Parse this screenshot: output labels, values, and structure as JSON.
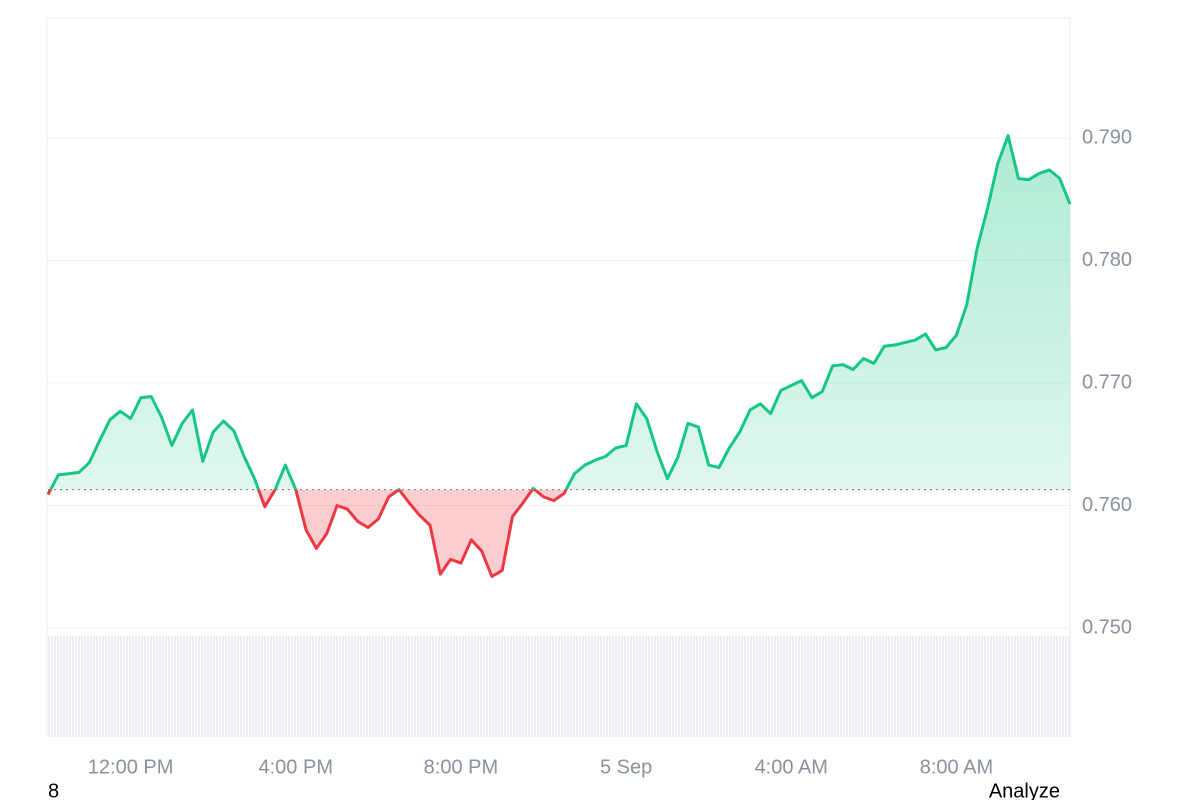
{
  "chart_data": {
    "type": "line",
    "categories": [
      null,
      null,
      null,
      null,
      null,
      null,
      null,
      null,
      "12:00 PM",
      null,
      null,
      null,
      null,
      null,
      null,
      null,
      null,
      null,
      null,
      null,
      null,
      null,
      null,
      null,
      "4:00 PM",
      null,
      null,
      null,
      null,
      null,
      null,
      null,
      null,
      null,
      null,
      null,
      null,
      null,
      null,
      null,
      "8:00 PM",
      null,
      null,
      null,
      null,
      null,
      null,
      null,
      null,
      null,
      null,
      null,
      null,
      null,
      null,
      null,
      "5 Sep",
      null,
      null,
      null,
      null,
      null,
      null,
      null,
      null,
      null,
      null,
      null,
      null,
      null,
      null,
      null,
      "4:00 AM",
      null,
      null,
      null,
      null,
      null,
      null,
      null,
      null,
      null,
      null,
      null,
      null,
      null,
      null,
      null,
      "8:00 AM",
      null,
      null,
      null,
      null,
      null,
      null,
      null,
      null,
      null,
      null,
      null
    ],
    "series": [
      {
        "color": "#16c784",
        "values": [
          0.7609,
          0.7625,
          0.7626,
          0.7627,
          0.7635,
          0.7653,
          0.767,
          0.7677,
          0.7671,
          0.7688,
          0.7689,
          0.7672,
          0.7649,
          0.7667,
          0.7678,
          0.7636,
          0.766,
          0.7669,
          0.7661,
          0.764,
          0.7622,
          0.7599,
          0.7613,
          0.7633,
          0.7613,
          0.758,
          0.7565,
          0.7577,
          0.76,
          0.7597,
          0.7587,
          0.7582,
          0.7589,
          0.7607,
          0.7613,
          0.7602,
          0.7592,
          0.7584,
          0.7544,
          0.7556,
          0.7553,
          0.7572,
          0.7563,
          0.7542,
          0.7547,
          0.7591,
          0.7602,
          0.7614,
          0.7607,
          0.7604,
          0.761,
          0.7626,
          0.7633,
          0.7637,
          0.764,
          0.7647,
          0.7649,
          0.7683,
          0.7671,
          0.7644,
          0.7622,
          0.7639,
          0.7667,
          0.7664,
          0.7633,
          0.7631,
          0.7647,
          0.766,
          0.7678,
          0.7683,
          0.7675,
          0.7694,
          0.7698,
          0.7702,
          0.7688,
          0.7693,
          0.7714,
          0.7715,
          0.7711,
          0.772,
          0.7716,
          0.773,
          0.7731,
          0.7733,
          0.7735,
          0.774,
          0.7727,
          0.7729,
          0.7739,
          0.7764,
          0.781,
          0.7842,
          0.7879,
          0.7902,
          0.7867,
          0.7866,
          0.7871,
          0.7874,
          0.7867,
          0.7846
        ]
      }
    ],
    "down_color": "#ea3943",
    "baseline": 0.7613,
    "ylim": [
      0.7411,
      0.7998
    ],
    "yticks": [
      {
        "value": 0.75,
        "label": "0.750"
      },
      {
        "value": 0.76,
        "label": "0.760"
      },
      {
        "value": 0.77,
        "label": "0.770"
      },
      {
        "value": 0.78,
        "label": "0.780"
      },
      {
        "value": 0.79,
        "label": "0.790"
      }
    ],
    "grid": true
  },
  "footer": {
    "left": "8",
    "right": "Analyze"
  }
}
